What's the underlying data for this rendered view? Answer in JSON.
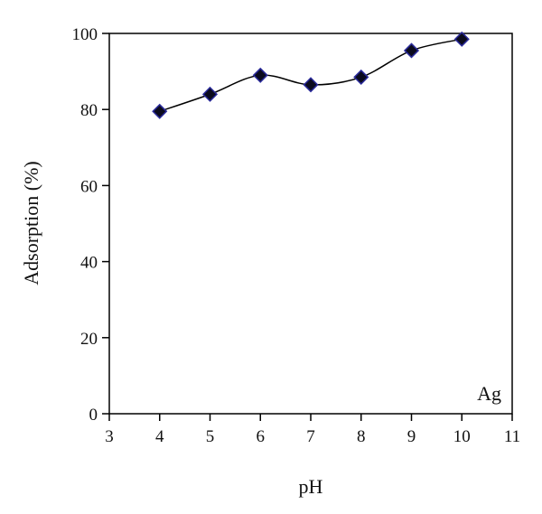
{
  "chart_data": {
    "type": "scatter",
    "title": "",
    "xlabel": "pH",
    "ylabel": "Adsorption (%)",
    "xlim": [
      3,
      11
    ],
    "ylim": [
      0,
      100
    ],
    "x_ticks": [
      3,
      4,
      5,
      6,
      7,
      8,
      9,
      10,
      11
    ],
    "y_ticks": [
      0,
      20,
      40,
      60,
      80,
      100
    ],
    "grid": false,
    "legend": "none",
    "annotation": "Ag",
    "series": [
      {
        "x": [
          4,
          5,
          6,
          7,
          8,
          9,
          10
        ],
        "y": [
          79.5,
          84,
          89,
          86.5,
          88.5,
          95.5,
          98.5
        ],
        "marker": "diamond",
        "marker_color": "#0b0b1e",
        "marker_edge_color": "#2a2a9a",
        "line": "smooth",
        "line_color": "#000000"
      }
    ]
  }
}
